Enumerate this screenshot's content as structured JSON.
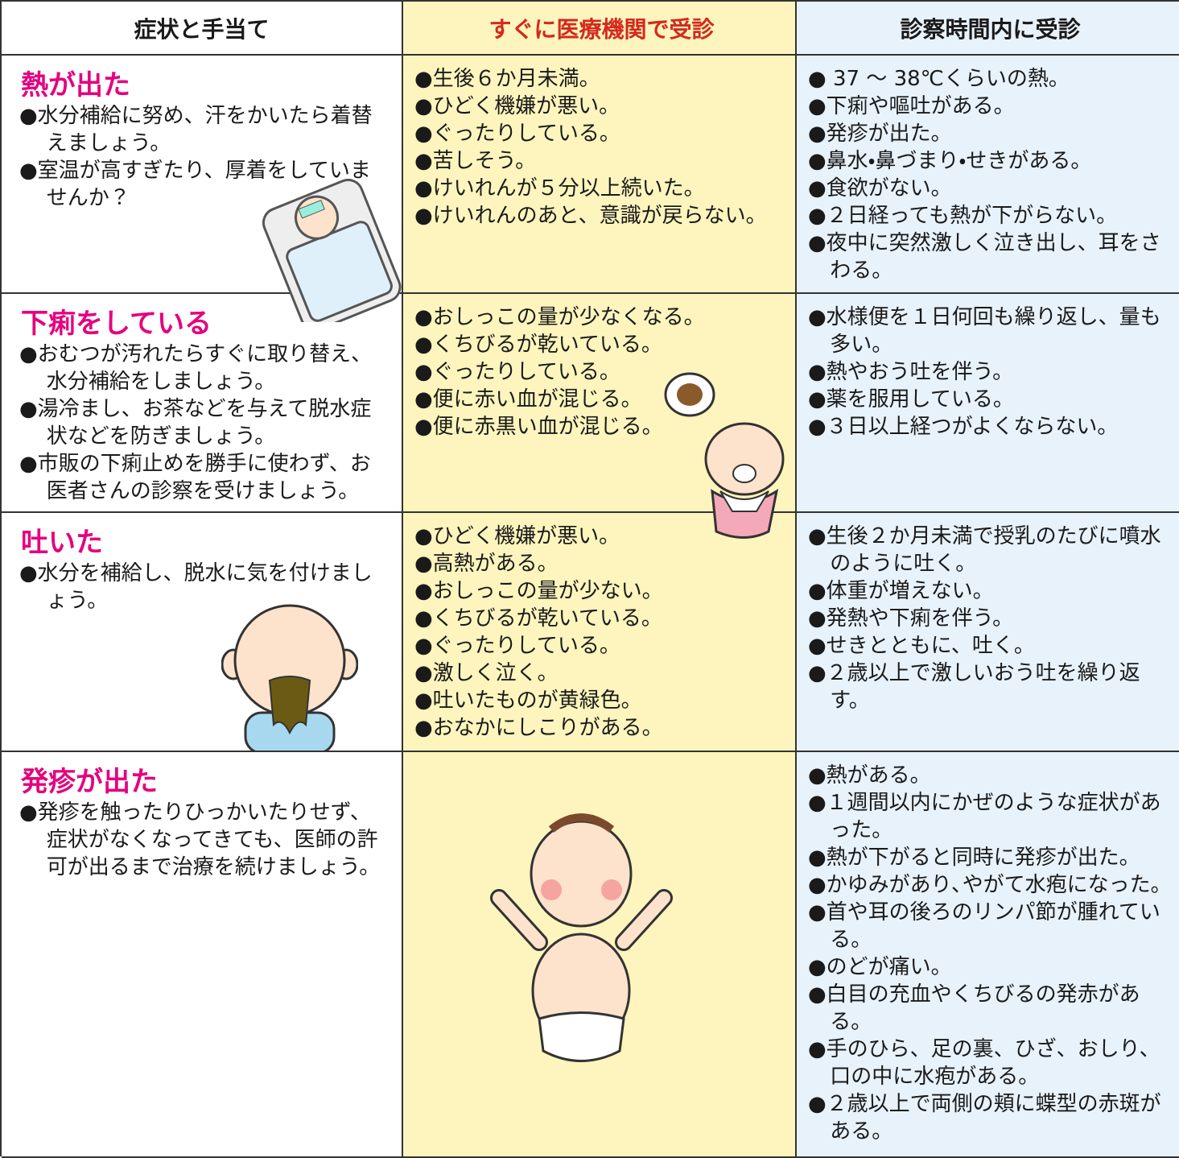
{
  "table": {
    "headers": [
      "症状と手当て",
      "すぐに医療機関で受診",
      "診察時間内に受診"
    ],
    "rows": [
      {
        "title": "熱が出た",
        "care": [
          "●水分補給に努め、汗をかいたら着替えましょう。",
          "●室温が高すぎたり、厚着をしていませんか？"
        ],
        "urgent": [
          "●生後６か月未満。",
          "●ひどく機嫌が悪い。",
          "●ぐったりしている。",
          "●苦しそう。",
          "●けいれんが５分以上続いた。",
          "●けいれんのあと、意識が戻らない。"
        ],
        "clinic": [
          "● 37 ～ 38℃くらいの熱。",
          "●下痢や嘔吐がある。",
          "●発疹が出た。",
          "●鼻水・鼻づまり・せきがある。",
          "●食欲がない。",
          "●２日経っても熱が下がらない。",
          "●夜中に突然激しく泣き出し、耳をさわる。"
        ]
      },
      {
        "title": "下痢をしている",
        "care": [
          "●おむつが汚れたらすぐに取り替え、水分補給をしましょう。",
          "●湯冷まし、お茶などを与えて脱水症状などを防ぎましょう。",
          "●市販の下痢止めを勝手に使わず、お医者さんの診察を受けましょう。"
        ],
        "urgent": [
          "●おしっこの量が少なくなる。",
          "●くちびるが乾いている。",
          "●ぐったりしている。",
          "●便に赤い血が混じる。",
          "●便に赤黒い血が混じる。"
        ],
        "clinic": [
          "●水様便を１日何回も繰り返し、量も多い。",
          "●熱やおう吐を伴う。",
          "●薬を服用している。",
          "●３日以上経つがよくならない。"
        ]
      },
      {
        "title": "吐いた",
        "care": [
          "●水分を補給し、脱水に気を付けましょう。"
        ],
        "urgent": [
          "●ひどく機嫌が悪い。",
          "●高熱がある。",
          "●おしっこの量が少ない。",
          "●くちびるが乾いている。",
          "●ぐったりしている。",
          "●激しく泣く。",
          "●吐いたものが黄緑色。",
          "●おなかにしこりがある。"
        ],
        "clinic": [
          "●生後２か月未満で授乳のたびに噴水のように吐く。",
          "●体重が増えない。",
          "●発熱や下痢を伴う。",
          "●せきとともに、吐く。",
          "●２歳以上で激しいおう吐を繰り返す。"
        ]
      },
      {
        "title": "発疹が出た",
        "care": [
          "●発疹を触ったりひっかいたりせず、症状がなくなってきても、医師の許可が出るまで治療を続けましょう。"
        ],
        "urgent": [],
        "clinic": [
          "●熱がある。",
          "●１週間以内にかぜのような症状があった。",
          "●熱が下がると同時に発疹が出た。",
          "●かゆみがあり､やがて水疱になった。",
          "●首や耳の後ろのリンパ節が腫れている。",
          "●のどが痛い。",
          "●白目の充血やくちびるの発赤がある。",
          "●手のひら、足の裏、ひざ、おしり、口の中に水疱がある。",
          "●２歳以上で両側の頬に蝶型の赤斑がある。"
        ]
      }
    ]
  }
}
